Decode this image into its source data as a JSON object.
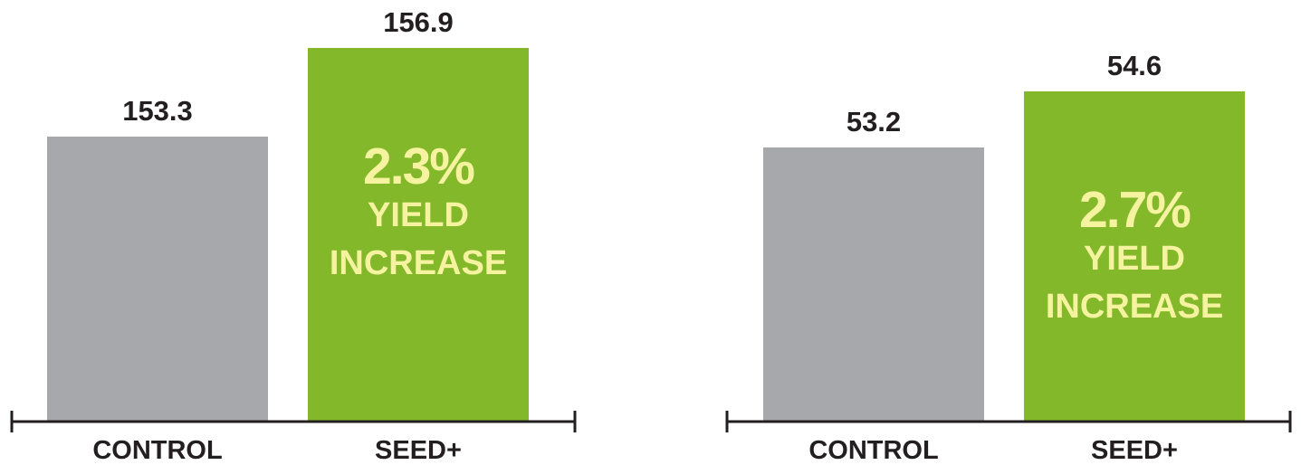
{
  "chart_data": [
    {
      "type": "bar",
      "categories": [
        "CONTROL",
        "SEED+"
      ],
      "values": [
        153.3,
        156.9
      ],
      "value_labels": [
        "153.3",
        "156.9"
      ],
      "annotation": {
        "bar": "SEED+",
        "percent": "2.3%",
        "line1": "YIELD",
        "line2": "INCREASE"
      }
    },
    {
      "type": "bar",
      "categories": [
        "CONTROL",
        "SEED+"
      ],
      "values": [
        53.2,
        54.6
      ],
      "value_labels": [
        "53.2",
        "54.6"
      ],
      "annotation": {
        "bar": "SEED+",
        "percent": "2.7%",
        "line1": "YIELD",
        "line2": "INCREASE"
      }
    }
  ],
  "colors": {
    "control_bar": "#a7a8ab",
    "seed_bar": "#84b82b",
    "annotation_text": "#f6f3a0",
    "text": "#231f20"
  }
}
